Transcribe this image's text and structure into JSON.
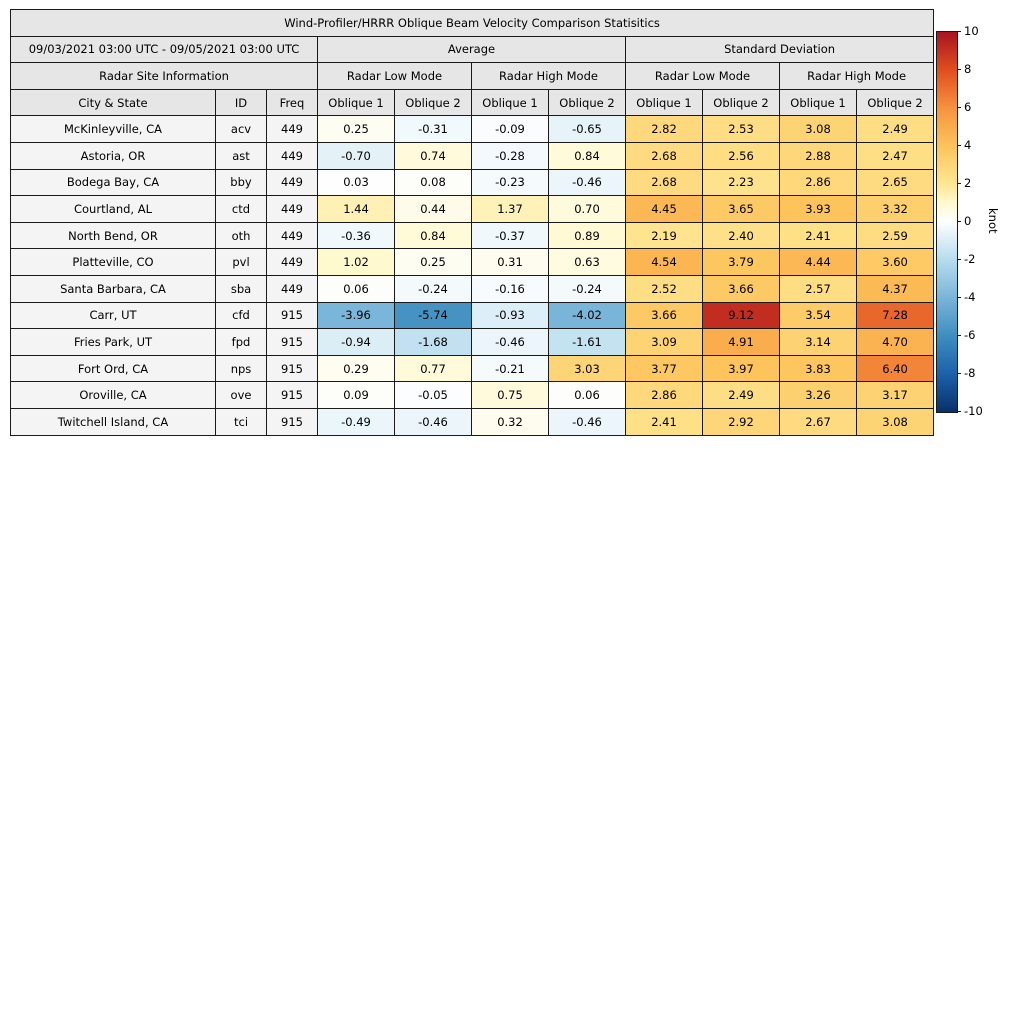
{
  "title": "Wind-Profiler/HRRR Oblique Beam Velocity Comparison Statisitics",
  "header": {
    "date_range": "09/03/2021 03:00 UTC - 09/05/2021 03:00 UTC",
    "average_label": "Average",
    "std_label": "Standard Deviation",
    "site_info_label": "Radar Site Information",
    "low_mode_label": "Radar Low Mode",
    "high_mode_label": "Radar High Mode",
    "col_city": "City & State",
    "col_id": "ID",
    "col_freq": "Freq",
    "col_oblique1": "Oblique 1",
    "col_oblique2": "Oblique 2"
  },
  "colorbar": {
    "label": "knot",
    "min": -10,
    "max": 10,
    "ticks": [
      10,
      8,
      6,
      4,
      2,
      0,
      -2,
      -4,
      -6,
      -8,
      -10
    ],
    "anchors": [
      {
        "v": -10,
        "c": "#08306B"
      },
      {
        "v": -8,
        "c": "#1C61A9"
      },
      {
        "v": -6,
        "c": "#3E8EC0"
      },
      {
        "v": -4,
        "c": "#79B5D9"
      },
      {
        "v": -2,
        "c": "#B6DCEE"
      },
      {
        "v": -1,
        "c": "#D9EDF6"
      },
      {
        "v": 0,
        "c": "#FDFEFE"
      },
      {
        "v": 1,
        "c": "#FFF9CF"
      },
      {
        "v": 2,
        "c": "#FEE793"
      },
      {
        "v": 4,
        "c": "#FDC35A"
      },
      {
        "v": 6,
        "c": "#F6933E"
      },
      {
        "v": 8,
        "c": "#E04E1E"
      },
      {
        "v": 10,
        "c": "#A81421"
      }
    ]
  },
  "chart_data": {
    "type": "table",
    "title": "Wind-Profiler/HRRR Oblique Beam Velocity Comparison Statisitics",
    "unit": "knot",
    "value_range": [
      -10,
      10
    ],
    "columns": [
      "City & State",
      "ID",
      "Freq",
      "Average Radar Low Mode Oblique 1",
      "Average Radar Low Mode Oblique 2",
      "Average Radar High Mode Oblique 1",
      "Average Radar High Mode Oblique 2",
      "Standard Deviation Radar Low Mode Oblique 1",
      "Standard Deviation Radar Low Mode Oblique 2",
      "Standard Deviation Radar High Mode Oblique 1",
      "Standard Deviation Radar High Mode Oblique 2"
    ],
    "rows": [
      {
        "city": "McKinleyville, CA",
        "id": "acv",
        "freq": "449",
        "values": [
          0.25,
          -0.31,
          -0.09,
          -0.65,
          2.82,
          2.53,
          3.08,
          2.49
        ]
      },
      {
        "city": "Astoria, OR",
        "id": "ast",
        "freq": "449",
        "values": [
          -0.7,
          0.74,
          -0.28,
          0.84,
          2.68,
          2.56,
          2.88,
          2.47
        ]
      },
      {
        "city": "Bodega Bay, CA",
        "id": "bby",
        "freq": "449",
        "values": [
          0.03,
          0.08,
          -0.23,
          -0.46,
          2.68,
          2.23,
          2.86,
          2.65
        ]
      },
      {
        "city": "Courtland, AL",
        "id": "ctd",
        "freq": "449",
        "values": [
          1.44,
          0.44,
          1.37,
          0.7,
          4.45,
          3.65,
          3.93,
          3.32
        ]
      },
      {
        "city": "North Bend, OR",
        "id": "oth",
        "freq": "449",
        "values": [
          -0.36,
          0.84,
          -0.37,
          0.89,
          2.19,
          2.4,
          2.41,
          2.59
        ]
      },
      {
        "city": "Platteville, CO",
        "id": "pvl",
        "freq": "449",
        "values": [
          1.02,
          0.25,
          0.31,
          0.63,
          4.54,
          3.79,
          4.44,
          3.6
        ]
      },
      {
        "city": "Santa Barbara, CA",
        "id": "sba",
        "freq": "449",
        "values": [
          0.06,
          -0.24,
          -0.16,
          -0.24,
          2.52,
          3.66,
          2.57,
          4.37
        ]
      },
      {
        "city": "Carr, UT",
        "id": "cfd",
        "freq": "915",
        "values": [
          -3.96,
          -5.74,
          -0.93,
          -4.02,
          3.66,
          9.12,
          3.54,
          7.28
        ]
      },
      {
        "city": "Fries Park, UT",
        "id": "fpd",
        "freq": "915",
        "values": [
          -0.94,
          -1.68,
          -0.46,
          -1.61,
          3.09,
          4.91,
          3.14,
          4.7
        ]
      },
      {
        "city": "Fort Ord, CA",
        "id": "nps",
        "freq": "915",
        "values": [
          0.29,
          0.77,
          -0.21,
          3.03,
          3.77,
          3.97,
          3.83,
          6.4
        ]
      },
      {
        "city": "Oroville, CA",
        "id": "ove",
        "freq": "915",
        "values": [
          0.09,
          -0.05,
          0.75,
          0.06,
          2.86,
          2.49,
          3.26,
          3.17
        ]
      },
      {
        "city": "Twitchell Island, CA",
        "id": "tci",
        "freq": "915",
        "values": [
          -0.49,
          -0.46,
          0.32,
          -0.46,
          2.41,
          2.92,
          2.67,
          3.08
        ]
      }
    ]
  }
}
